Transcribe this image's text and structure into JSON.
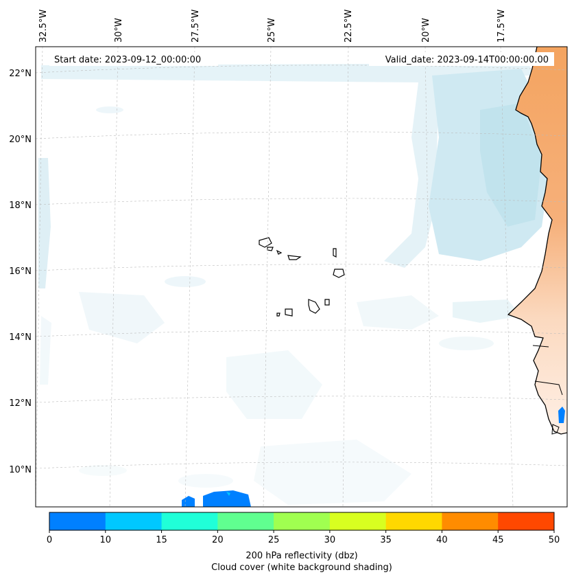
{
  "map": {
    "start_date_label": "Start date: 2023-09-12_00:00:00",
    "valid_date_label": "Valid_date: 2023-09-14T00:00:00.00",
    "lon_labels": [
      "32.5°W",
      "30°W",
      "27.5°W",
      "25°W",
      "22.5°W",
      "20°W",
      "17.5°W"
    ],
    "lat_labels": [
      "22°N",
      "20°N",
      "18°N",
      "16°N",
      "14°N",
      "12°N",
      "10°N"
    ],
    "gridlines": true,
    "land_color": "#f4a460",
    "cloud_color": "#a8d8e8",
    "coastline_color": "#000000"
  },
  "colorbar": {
    "ticks": [
      "0",
      "10",
      "15",
      "20",
      "25",
      "30",
      "35",
      "40",
      "45",
      "50"
    ],
    "colors": [
      "#0080ff",
      "#00c8ff",
      "#20ffd8",
      "#60ff90",
      "#a0ff50",
      "#d8ff20",
      "#ffd800",
      "#ff8c00",
      "#ff4800"
    ],
    "label_line1": "200 hPa reflectivity (dbz)",
    "label_line2": "Cloud cover (white background shading)"
  }
}
